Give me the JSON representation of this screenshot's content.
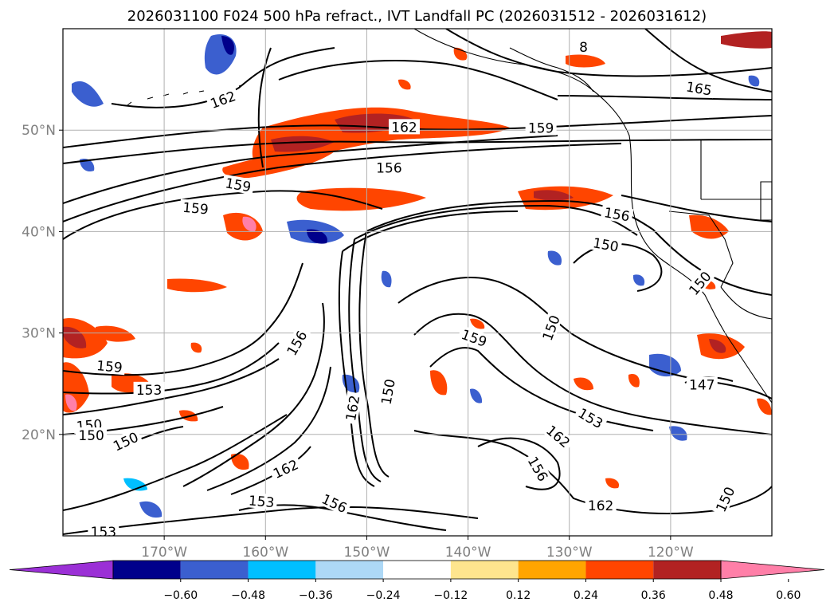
{
  "title": "2026031100 F024 500 hPa refract., IVT Landfall PC (2026031512 - 2026031612)",
  "map": {
    "extent": {
      "lon_min": -180,
      "lon_max": -110,
      "lat_min": 10,
      "lat_max": 60
    },
    "gridlines": true,
    "lon_ticks": [
      {
        "lon": -170,
        "label": "170°W"
      },
      {
        "lon": -160,
        "label": "160°W"
      },
      {
        "lon": -150,
        "label": "150°W"
      },
      {
        "lon": -140,
        "label": "140°W"
      },
      {
        "lon": -130,
        "label": "130°W"
      },
      {
        "lon": -120,
        "label": "120°W"
      }
    ],
    "lat_ticks": [
      {
        "lat": 20,
        "label": "20°N"
      },
      {
        "lat": 30,
        "label": "30°N"
      },
      {
        "lat": 40,
        "label": "40°N"
      },
      {
        "lat": 50,
        "label": "50°N"
      }
    ]
  },
  "contour_labels": [
    {
      "text": "162",
      "lon": -164.2,
      "lat": 53.0,
      "rot": -20
    },
    {
      "text": "162",
      "lon": -146.3,
      "lat": 50.3,
      "rot": 0
    },
    {
      "text": "159",
      "lon": -132.8,
      "lat": 50.2,
      "rot": 0
    },
    {
      "text": "156",
      "lon": -147.8,
      "lat": 46.3,
      "rot": 0
    },
    {
      "text": "159",
      "lon": -162.7,
      "lat": 44.6,
      "rot": 10
    },
    {
      "text": "159",
      "lon": -166.9,
      "lat": 42.3,
      "rot": 5
    },
    {
      "text": "156",
      "lon": -125.3,
      "lat": 41.7,
      "rot": 10
    },
    {
      "text": "150",
      "lon": -126.4,
      "lat": 38.7,
      "rot": 10
    },
    {
      "text": "165",
      "lon": -117.2,
      "lat": 54.1,
      "rot": 10
    },
    {
      "text": "150",
      "lon": -131.8,
      "lat": 30.5,
      "rot": -70
    },
    {
      "text": "159",
      "lon": -139.4,
      "lat": 29.5,
      "rot": 20
    },
    {
      "text": "156",
      "lon": -156.9,
      "lat": 29.0,
      "rot": -60
    },
    {
      "text": "159",
      "lon": -175.4,
      "lat": 26.7,
      "rot": 5
    },
    {
      "text": "153",
      "lon": -171.5,
      "lat": 24.4,
      "rot": 0
    },
    {
      "text": "150",
      "lon": -147.9,
      "lat": 24.2,
      "rot": -80
    },
    {
      "text": "162",
      "lon": -151.4,
      "lat": 22.6,
      "rot": -80
    },
    {
      "text": "153",
      "lon": -127.9,
      "lat": 21.6,
      "rot": 30
    },
    {
      "text": "150",
      "lon": -177.4,
      "lat": 20.9,
      "rot": -5
    },
    {
      "text": "150",
      "lon": -177.2,
      "lat": 19.9,
      "rot": 0
    },
    {
      "text": "150",
      "lon": -173.8,
      "lat": 19.3,
      "rot": -25
    },
    {
      "text": "162",
      "lon": -131.1,
      "lat": 19.8,
      "rot": 40
    },
    {
      "text": "147",
      "lon": -116.9,
      "lat": 24.9,
      "rot": 0
    },
    {
      "text": "150",
      "lon": -117.1,
      "lat": 34.9,
      "rot": -50
    },
    {
      "text": "162",
      "lon": -158.0,
      "lat": 16.6,
      "rot": -25
    },
    {
      "text": "156",
      "lon": -133.1,
      "lat": 16.6,
      "rot": 60
    },
    {
      "text": "153",
      "lon": -160.4,
      "lat": 13.4,
      "rot": 5
    },
    {
      "text": "156",
      "lon": -153.2,
      "lat": 13.2,
      "rot": 25
    },
    {
      "text": "162",
      "lon": -126.9,
      "lat": 13.0,
      "rot": 0
    },
    {
      "text": "150",
      "lon": -114.6,
      "lat": 13.6,
      "rot": -65
    },
    {
      "text": "153",
      "lon": -176.0,
      "lat": 10.4,
      "rot": 0
    },
    {
      "text": "8",
      "lon": -128.6,
      "lat": 58.2,
      "rot": 0
    }
  ],
  "colorbar": {
    "colors": [
      "#9b30d6",
      "#00008b",
      "#3b5fcf",
      "#00bfff",
      "#add8f6",
      "#ffffff",
      "#fee58e",
      "#ffa500",
      "#ff4500",
      "#b22222",
      "#ff7fa8"
    ],
    "tick_labels": [
      "−0.60",
      "−0.48",
      "−0.36",
      "−0.24",
      "−0.12",
      "0.12",
      "0.24",
      "0.36",
      "0.48",
      "0.60"
    ]
  }
}
